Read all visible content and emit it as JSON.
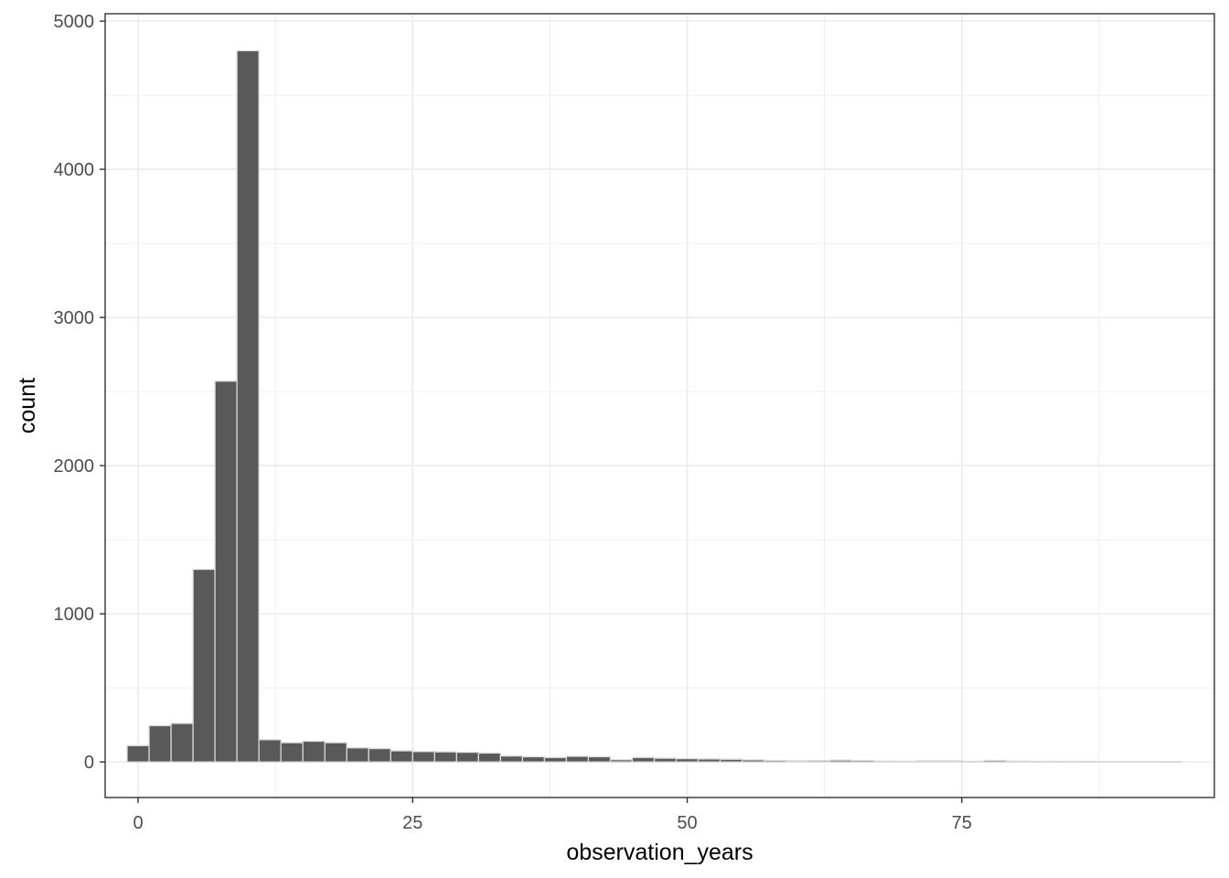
{
  "chart_data": {
    "type": "bar",
    "subtype": "histogram",
    "title": "",
    "xlabel": "observation_years",
    "ylabel": "count",
    "xlim": [
      -3,
      98
    ],
    "ylim": [
      -240,
      5050
    ],
    "x_ticks": [
      0,
      25,
      50,
      75
    ],
    "x_tick_labels": [
      "0",
      "25",
      "50",
      "75"
    ],
    "y_ticks": [
      0,
      1000,
      2000,
      3000,
      4000,
      5000
    ],
    "y_tick_labels": [
      "0",
      "1000",
      "2000",
      "3000",
      "4000",
      "5000"
    ],
    "bin_width": 2,
    "bin_starts": [
      -1,
      1,
      3,
      5,
      7,
      9,
      11,
      13,
      15,
      17,
      19,
      21,
      23,
      25,
      27,
      29,
      31,
      33,
      35,
      37,
      39,
      41,
      43,
      45,
      47,
      49,
      51,
      53,
      55,
      57,
      59,
      61,
      63,
      65,
      67,
      69,
      71,
      73,
      75,
      77,
      79,
      81,
      83,
      85,
      87,
      89,
      91,
      93
    ],
    "values": [
      110,
      245,
      260,
      1300,
      2570,
      4800,
      150,
      130,
      140,
      130,
      95,
      90,
      75,
      70,
      68,
      65,
      60,
      40,
      35,
      30,
      38,
      35,
      15,
      30,
      25,
      22,
      20,
      18,
      14,
      10,
      8,
      9,
      12,
      10,
      6,
      5,
      8,
      8,
      4,
      10,
      6,
      4,
      4,
      4,
      3,
      3,
      3,
      2
    ],
    "grid": true,
    "fill_color": "#595959",
    "outline_color": "#d9d9d9",
    "panel_border_color": "#333333",
    "grid_color": "#ebebeb"
  }
}
